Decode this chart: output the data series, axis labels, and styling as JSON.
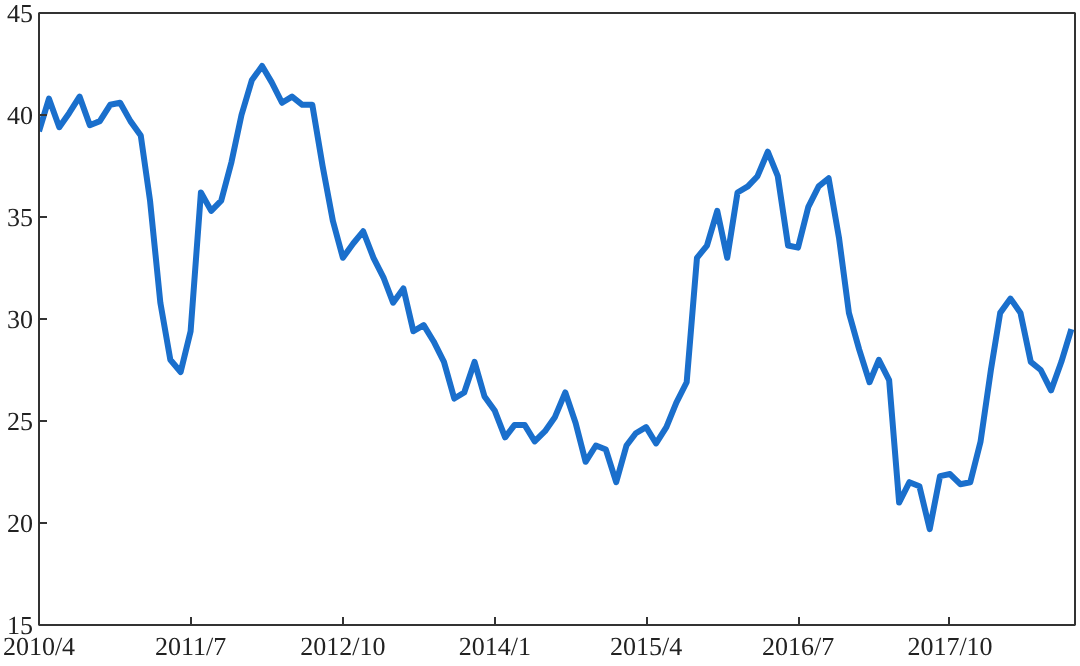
{
  "chart_data": {
    "type": "line",
    "x": [
      "2010-04",
      "2010-05",
      "2010-06",
      "2010-07",
      "2010-08",
      "2010-09",
      "2010-10",
      "2010-11",
      "2010-12",
      "2011-01",
      "2011-02",
      "2011-03",
      "2011-04",
      "2011-05",
      "2011-06",
      "2011-07",
      "2011-08",
      "2011-09",
      "2011-10",
      "2011-11",
      "2011-12",
      "2012-01",
      "2012-02",
      "2012-03",
      "2012-04",
      "2012-05",
      "2012-06",
      "2012-07",
      "2012-08",
      "2012-09",
      "2012-10",
      "2012-11",
      "2012-12",
      "2013-01",
      "2013-02",
      "2013-03",
      "2013-04",
      "2013-05",
      "2013-06",
      "2013-07",
      "2013-08",
      "2013-09",
      "2013-10",
      "2013-11",
      "2013-12",
      "2014-01",
      "2014-02",
      "2014-03",
      "2014-04",
      "2014-05",
      "2014-06",
      "2014-07",
      "2014-08",
      "2014-09",
      "2014-10",
      "2014-11",
      "2014-12",
      "2015-01",
      "2015-02",
      "2015-03",
      "2015-04",
      "2015-05",
      "2015-06",
      "2015-07",
      "2015-08",
      "2015-09",
      "2015-10",
      "2015-11",
      "2015-12",
      "2016-01",
      "2016-02",
      "2016-03",
      "2016-04",
      "2016-05",
      "2016-06",
      "2016-07",
      "2016-08",
      "2016-09",
      "2016-10",
      "2016-11",
      "2016-12",
      "2017-01",
      "2017-02",
      "2017-03",
      "2017-04",
      "2017-05",
      "2017-06",
      "2017-07",
      "2017-08",
      "2017-09",
      "2017-10",
      "2017-11",
      "2017-12",
      "2018-01",
      "2018-02",
      "2018-03",
      "2018-04",
      "2018-05",
      "2018-06",
      "2018-07",
      "2018-08",
      "2018-09",
      "2018-10"
    ],
    "series": [
      {
        "color": "#1a6fcc",
        "values": [
          39.2,
          40.8,
          39.4,
          40.1,
          40.9,
          39.5,
          39.7,
          40.5,
          40.6,
          39.7,
          39.0,
          35.8,
          30.8,
          28.0,
          27.4,
          29.4,
          36.2,
          35.3,
          35.8,
          37.7,
          40.0,
          41.7,
          42.4,
          41.6,
          40.6,
          40.9,
          40.5,
          40.5,
          37.5,
          34.8,
          33.0,
          33.7,
          34.3,
          33.0,
          32.0,
          30.8,
          31.5,
          29.4,
          29.7,
          28.9,
          27.9,
          26.1,
          26.4,
          27.9,
          26.2,
          25.5,
          24.2,
          24.8,
          24.8,
          24.0,
          24.5,
          25.2,
          26.4,
          24.9,
          23.0,
          23.8,
          23.6,
          22.0,
          23.8,
          24.4,
          24.7,
          23.9,
          24.7,
          25.9,
          26.9,
          33.0,
          33.6,
          35.3,
          33.0,
          36.2,
          36.5,
          37.0,
          38.2,
          37.0,
          33.6,
          33.5,
          35.5,
          36.5,
          36.9,
          34.0,
          30.3,
          28.5,
          26.9,
          28.0,
          27.0,
          21.0,
          22.0,
          21.8,
          19.7,
          22.3,
          22.4,
          21.9,
          22.0,
          24.0,
          27.5,
          30.3,
          31.0,
          30.3,
          27.9,
          27.5,
          26.5,
          27.9,
          29.5
        ]
      }
    ],
    "xlim": [
      "2010-04",
      "2018-10-12"
    ],
    "xticks": [
      {
        "value": "2010-04",
        "label": "2010/4"
      },
      {
        "value": "2011-07",
        "label": "2011/7"
      },
      {
        "value": "2012-10",
        "label": "2012/10"
      },
      {
        "value": "2014-01",
        "label": "2014/1"
      },
      {
        "value": "2015-04",
        "label": "2015/4"
      },
      {
        "value": "2016-07",
        "label": "2016/7"
      },
      {
        "value": "2017-10",
        "label": "2017/10"
      }
    ],
    "ylim": [
      15,
      45
    ],
    "yticks": [
      15,
      20,
      25,
      30,
      35,
      40,
      45
    ],
    "grid": false,
    "marker": "none",
    "line_style": "solid"
  }
}
